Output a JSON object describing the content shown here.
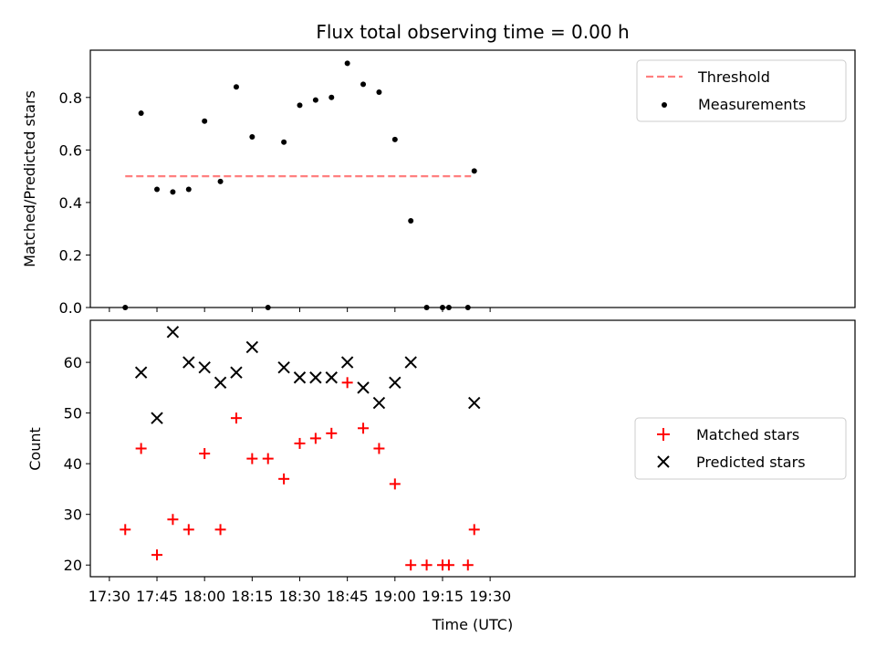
{
  "chart_data": [
    {
      "type": "scatter",
      "title": "Flux total observing time = 0.00 h",
      "xlabel": "",
      "ylabel": "Matched/Predicted stars",
      "ylim": [
        0.0,
        0.98
      ],
      "yticks": [
        0.0,
        0.2,
        0.4,
        0.6,
        0.8
      ],
      "ytick_labels": [
        "0.0",
        "0.2",
        "0.4",
        "0.6",
        "0.8"
      ],
      "xlim_minutes": [
        1044,
        1285
      ],
      "xticks": [
        1050,
        1065,
        1080,
        1095,
        1110,
        1125,
        1140,
        1155,
        1170
      ],
      "legend": {
        "placement": "upper right",
        "entries": [
          "Threshold",
          "Measurements"
        ]
      },
      "series": [
        {
          "name": "Threshold",
          "style": "dashed-line",
          "color": "#ff7f7f",
          "x": [
            1055,
            1164
          ],
          "y": [
            0.5,
            0.5
          ]
        },
        {
          "name": "Measurements",
          "style": "dot",
          "color": "#000000",
          "x": [
            1055,
            1060,
            1065,
            1070,
            1075,
            1080,
            1085,
            1090,
            1095,
            1100,
            1105,
            1110,
            1115,
            1120,
            1125,
            1130,
            1135,
            1140,
            1145,
            1150,
            1155,
            1157,
            1163,
            1165
          ],
          "y": [
            0.0,
            0.74,
            0.45,
            0.44,
            0.45,
            0.71,
            0.48,
            0.84,
            0.65,
            0.0,
            0.63,
            0.77,
            0.79,
            0.8,
            0.93,
            0.85,
            0.82,
            0.64,
            0.33,
            0.0,
            0.0,
            0.0,
            0.0,
            0.52
          ]
        }
      ]
    },
    {
      "type": "scatter",
      "title": "",
      "xlabel": "Time (UTC)",
      "ylabel": "Count",
      "ylim": [
        17.7,
        68.3
      ],
      "yticks": [
        20,
        30,
        40,
        50,
        60
      ],
      "ytick_labels": [
        "20",
        "30",
        "40",
        "50",
        "60"
      ],
      "xlim_minutes": [
        1044,
        1285
      ],
      "xticks": [
        1050,
        1065,
        1080,
        1095,
        1110,
        1125,
        1140,
        1155,
        1170
      ],
      "xtick_labels": [
        "17:30",
        "17:45",
        "18:00",
        "18:15",
        "18:30",
        "18:45",
        "19:00",
        "19:15",
        "19:30"
      ],
      "legend": {
        "placement": "center right",
        "entries": [
          "Matched stars",
          "Predicted stars"
        ]
      },
      "series": [
        {
          "name": "Matched stars",
          "marker": "+",
          "color": "#ff0000",
          "x": [
            1055,
            1060,
            1065,
            1070,
            1075,
            1080,
            1085,
            1090,
            1095,
            1100,
            1105,
            1110,
            1115,
            1120,
            1125,
            1130,
            1135,
            1140,
            1145,
            1150,
            1155,
            1157,
            1163,
            1165
          ],
          "y": [
            27,
            43,
            22,
            29,
            27,
            42,
            27,
            49,
            41,
            41,
            37,
            44,
            45,
            46,
            56,
            47,
            43,
            36,
            20,
            20,
            20,
            20,
            20,
            27
          ]
        },
        {
          "name": "Predicted stars",
          "marker": "x",
          "color": "#000000",
          "x": [
            1060,
            1065,
            1070,
            1075,
            1080,
            1085,
            1090,
            1095,
            1105,
            1110,
            1115,
            1120,
            1125,
            1130,
            1135,
            1140,
            1145,
            1165
          ],
          "y": [
            58,
            49,
            66,
            60,
            59,
            56,
            58,
            63,
            59,
            57,
            57,
            57,
            60,
            55,
            52,
            56,
            60,
            52
          ]
        }
      ]
    }
  ]
}
